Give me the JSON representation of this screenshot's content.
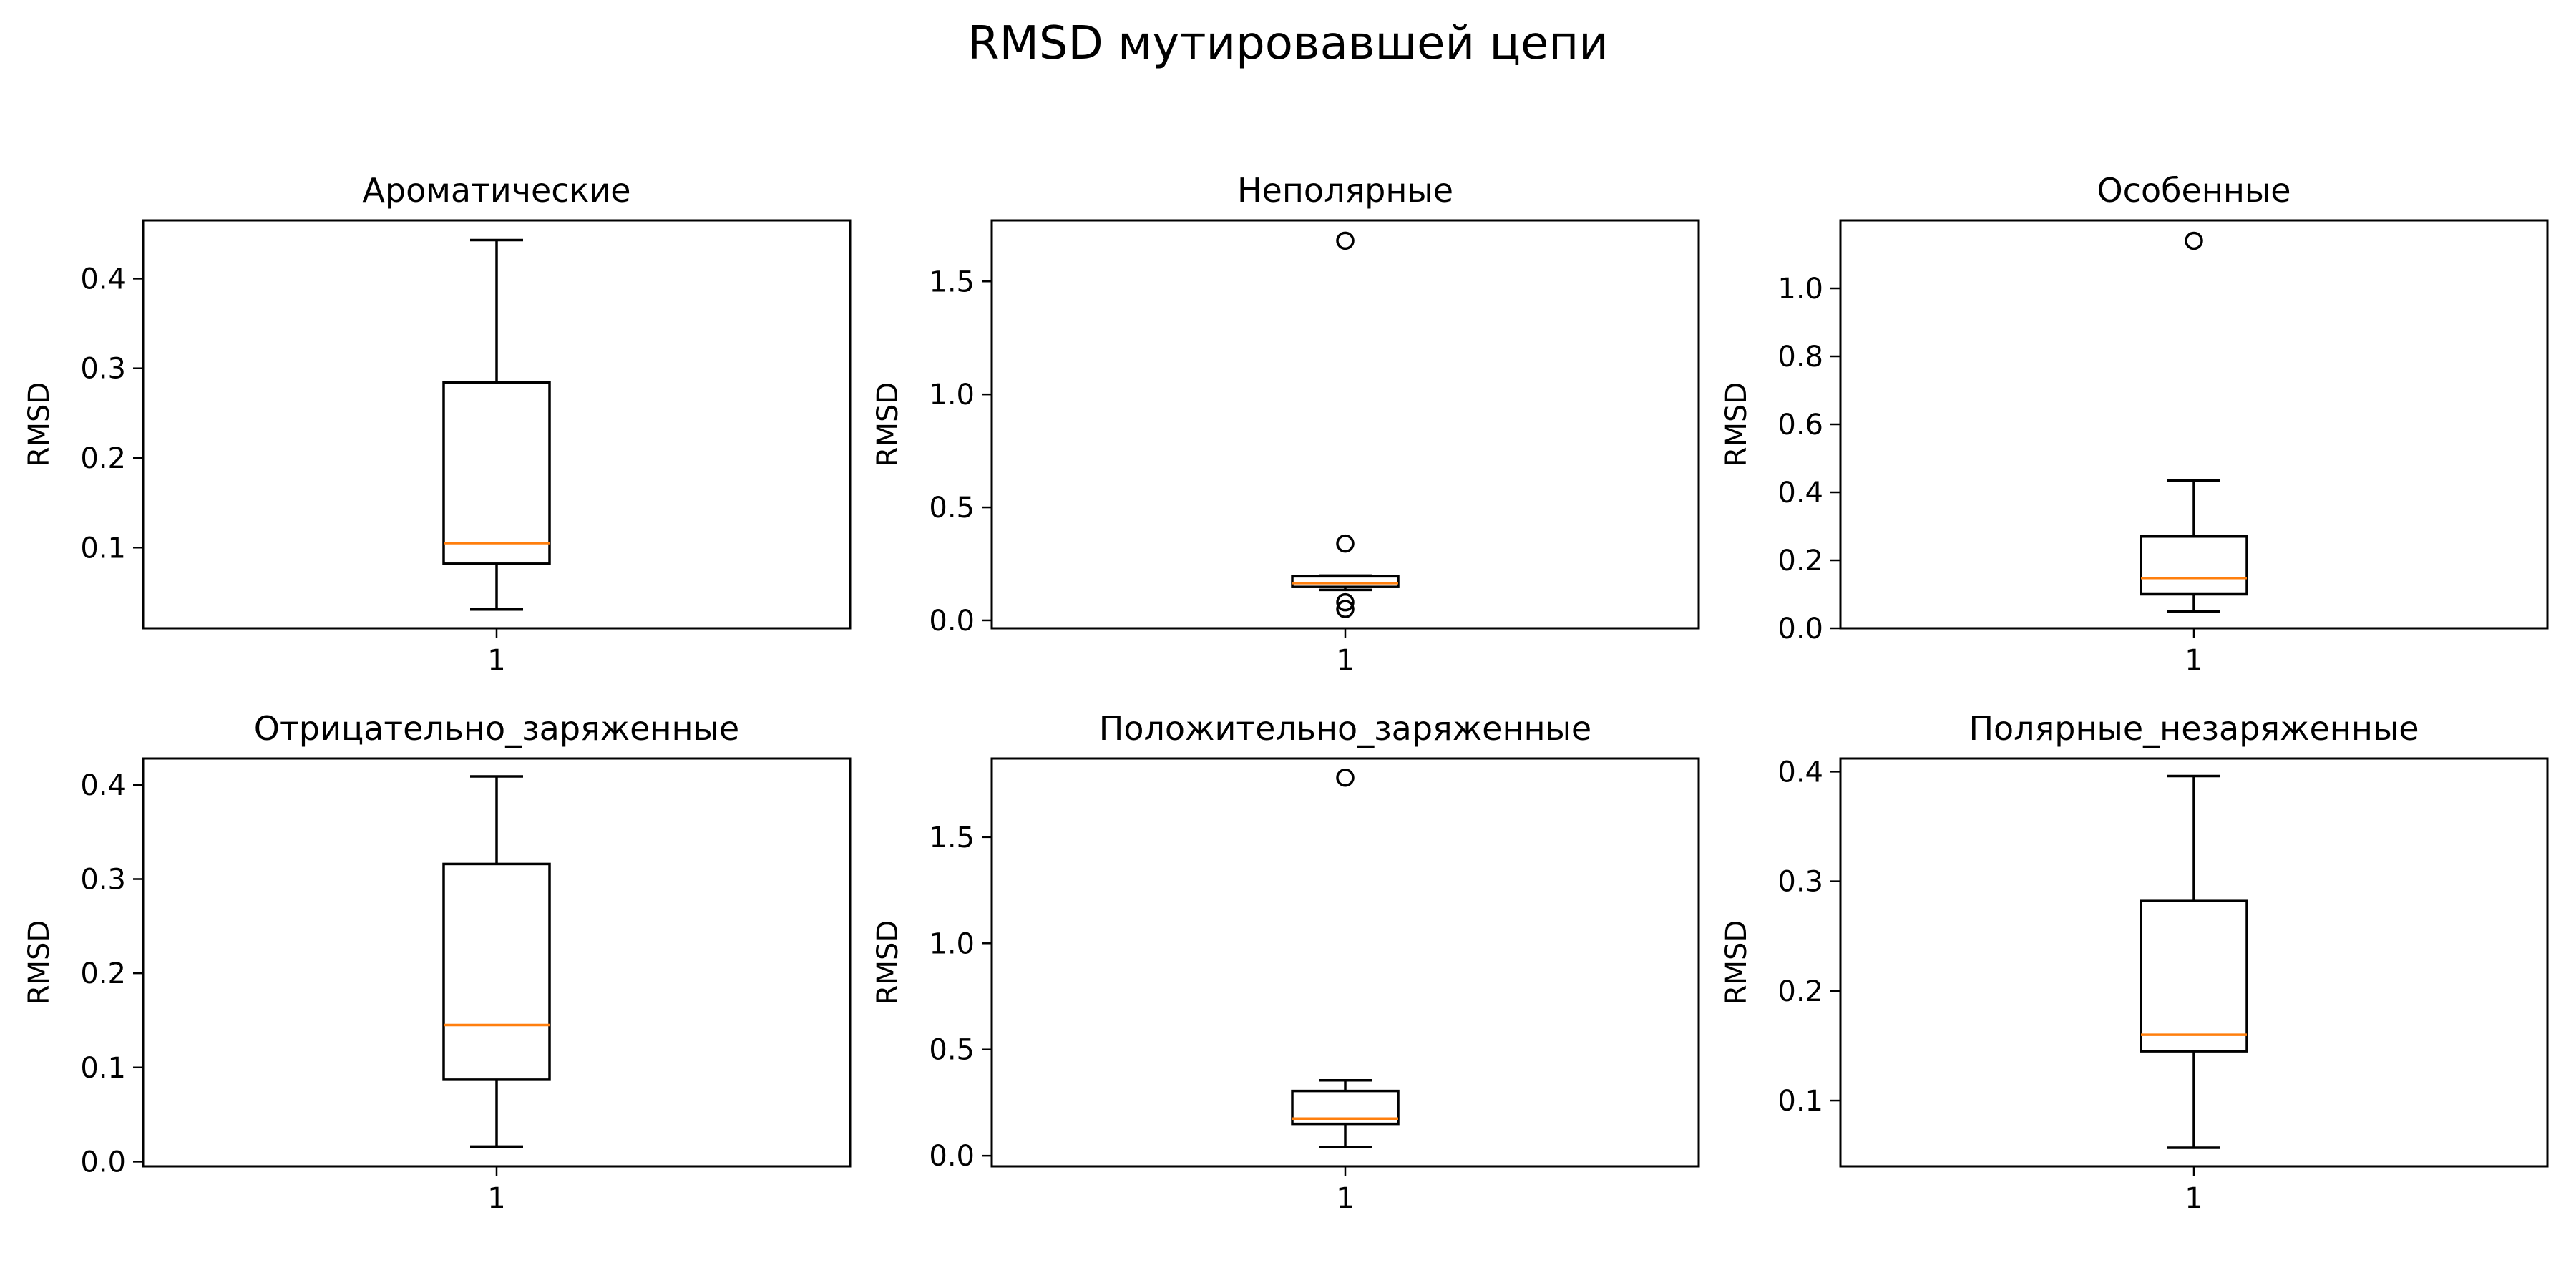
{
  "colors": {
    "box": "#000000",
    "median": "#ff7f0e",
    "flier": "#000000",
    "background": "#ffffff"
  },
  "chart_data": {
    "type": "box",
    "title": "RMSD мутировавшей цепи",
    "layout": "2x3 grid",
    "panels": [
      {
        "title": "Ароматические",
        "ylabel": "RMSD",
        "xticks": [
          "1"
        ],
        "ylim": [
          0.01,
          0.465
        ],
        "yticks": [
          0.1,
          0.2,
          0.3,
          0.4
        ],
        "ytick_labels": [
          "0.1",
          "0.2",
          "0.3",
          "0.4"
        ],
        "box": {
          "whisker_low": 0.031,
          "q1": 0.082,
          "median": 0.105,
          "q3": 0.284,
          "whisker_high": 0.443,
          "fliers": []
        }
      },
      {
        "title": "Неполярные",
        "ylabel": "RMSD",
        "xticks": [
          "1"
        ],
        "ylim": [
          -0.035,
          1.77
        ],
        "yticks": [
          0.0,
          0.5,
          1.0,
          1.5
        ],
        "ytick_labels": [
          "0.0",
          "0.5",
          "1.0",
          "1.5"
        ],
        "box": {
          "whisker_low": 0.135,
          "q1": 0.148,
          "median": 0.165,
          "q3": 0.195,
          "whisker_high": 0.198,
          "fliers": [
            1.68,
            0.34,
            0.08,
            0.05
          ]
        }
      },
      {
        "title": "Особенные",
        "ylabel": "RMSD",
        "xticks": [
          "1"
        ],
        "ylim": [
          0.0,
          1.2
        ],
        "yticks": [
          0.0,
          0.2,
          0.4,
          0.6,
          0.8,
          1.0
        ],
        "ytick_labels": [
          "0.0",
          "0.2",
          "0.4",
          "0.6",
          "0.8",
          "1.0"
        ],
        "box": {
          "whisker_low": 0.05,
          "q1": 0.1,
          "median": 0.148,
          "q3": 0.27,
          "whisker_high": 0.435,
          "fliers": [
            1.14
          ]
        }
      },
      {
        "title": "Отрицательно_заряженные",
        "ylabel": "RMSD",
        "xticks": [
          "1"
        ],
        "ylim": [
          -0.005,
          0.428
        ],
        "yticks": [
          0.0,
          0.1,
          0.2,
          0.3,
          0.4
        ],
        "ytick_labels": [
          "0.0",
          "0.1",
          "0.2",
          "0.3",
          "0.4"
        ],
        "box": {
          "whisker_low": 0.016,
          "q1": 0.087,
          "median": 0.145,
          "q3": 0.316,
          "whisker_high": 0.409,
          "fliers": []
        }
      },
      {
        "title": "Положительно_заряженные",
        "ylabel": "RMSD",
        "xticks": [
          "1"
        ],
        "ylim": [
          -0.05,
          1.87
        ],
        "yticks": [
          0.0,
          0.5,
          1.0,
          1.5
        ],
        "ytick_labels": [
          "0.0",
          "0.5",
          "1.0",
          "1.5"
        ],
        "box": {
          "whisker_low": 0.04,
          "q1": 0.15,
          "median": 0.175,
          "q3": 0.305,
          "whisker_high": 0.355,
          "fliers": [
            1.78
          ]
        }
      },
      {
        "title": "Полярные_незаряженные",
        "ylabel": "RMSD",
        "xticks": [
          "1"
        ],
        "ylim": [
          0.04,
          0.412
        ],
        "yticks": [
          0.1,
          0.2,
          0.3,
          0.4
        ],
        "ytick_labels": [
          "0.1",
          "0.2",
          "0.3",
          "0.4"
        ],
        "box": {
          "whisker_low": 0.057,
          "q1": 0.145,
          "median": 0.16,
          "q3": 0.282,
          "whisker_high": 0.396,
          "fliers": []
        }
      }
    ]
  }
}
